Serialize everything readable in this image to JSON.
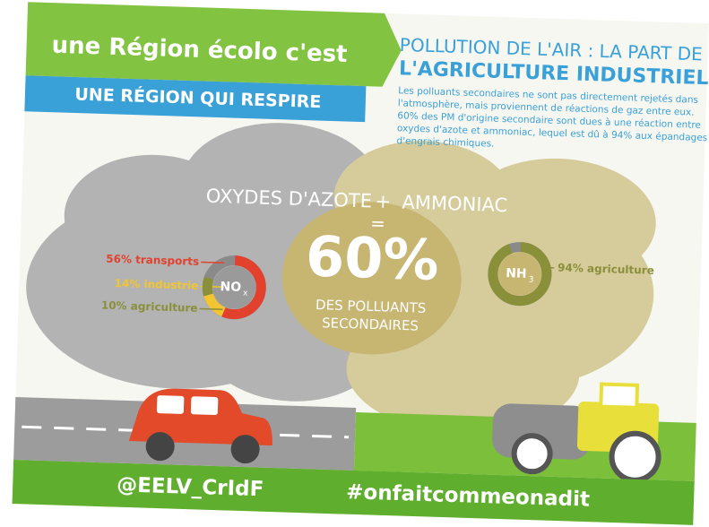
{
  "header": {
    "slogan": "une Région écolo c'est",
    "subslogan": "UNE RÉGION QUI RESPIRE",
    "title_line1": "POLLUTION DE L'AIR : LA PART DE",
    "title_line2": "L'AGRICULTURE INDUSTRIELLE",
    "description": [
      "Les polluants secondaires ne sont pas directement rejetés dans",
      "l'atmosphère, mais proviennent de réactions de gaz entre eux.",
      "60% des PM d'origine secondaire sont dues à une réaction entre",
      "oxydes d'azote et ammoniac, lequel est dû à 94% aux épandages",
      "d'engrais chimiques."
    ]
  },
  "center": {
    "left": "OXYDES D'AZOTE",
    "plus": "+",
    "right": "AMMONIAC",
    "equals": "=",
    "big": "60%",
    "sub_line1": "DES POLLUANTS",
    "sub_line2": "SECONDAIRES"
  },
  "nox": {
    "formula": "NO",
    "subscript": "x",
    "segments": [
      {
        "label": "56% transports",
        "value": 56,
        "color": "#e2412e"
      },
      {
        "label": "14% industrie",
        "value": 14,
        "color": "#f2c531"
      },
      {
        "label": "10% agriculture",
        "value": 10,
        "color": "#8a8f3a"
      }
    ]
  },
  "nh3": {
    "formula": "NH",
    "subscript": "3",
    "segments": [
      {
        "label": "94% agriculture",
        "value": 94,
        "color": "#8a8f3a"
      }
    ]
  },
  "footer": {
    "handle": "@EELV_CrIdF",
    "hashtag": "#onfaitcommeonadit"
  }
}
